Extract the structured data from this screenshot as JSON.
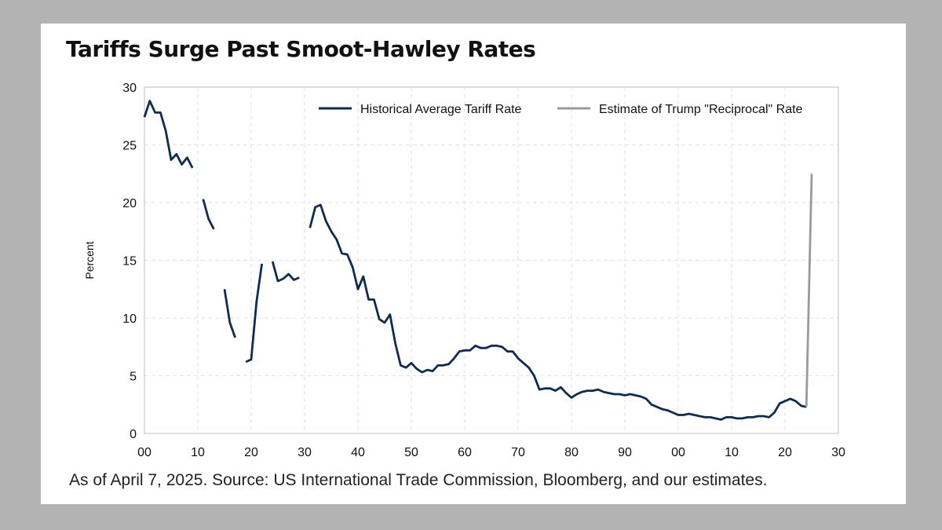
{
  "page": {
    "background": "#b3b3b3"
  },
  "chart_data": {
    "type": "line",
    "title": "Tariffs Surge Past Smoot-Hawley Rates",
    "ylabel": "Percent",
    "xlabel": "",
    "footnote": "As of April 7, 2025. Source: US International Trade Commission, Bloomberg, and our estimates.",
    "xlim": [
      1900,
      2030
    ],
    "ylim": [
      0,
      30
    ],
    "xticks": [
      {
        "value": 1900,
        "label": "00"
      },
      {
        "value": 1910,
        "label": "10"
      },
      {
        "value": 1920,
        "label": "20"
      },
      {
        "value": 1930,
        "label": "30"
      },
      {
        "value": 1940,
        "label": "40"
      },
      {
        "value": 1950,
        "label": "50"
      },
      {
        "value": 1960,
        "label": "60"
      },
      {
        "value": 1970,
        "label": "70"
      },
      {
        "value": 1980,
        "label": "80"
      },
      {
        "value": 1990,
        "label": "90"
      },
      {
        "value": 2000,
        "label": "00"
      },
      {
        "value": 2010,
        "label": "10"
      },
      {
        "value": 2020,
        "label": "20"
      },
      {
        "value": 2030,
        "label": "30"
      }
    ],
    "yticks": [
      0,
      5,
      10,
      15,
      20,
      25,
      30
    ],
    "grid": true,
    "legend_position": "top-right",
    "series": [
      {
        "name": "Historical Average Tariff Rate",
        "color": "#0d2c54",
        "segments": [
          [
            [
              1900,
              27.4
            ],
            [
              1901,
              28.8
            ],
            [
              1902,
              27.8
            ],
            [
              1903,
              27.8
            ],
            [
              1904,
              26.2
            ],
            [
              1905,
              23.7
            ],
            [
              1906,
              24.2
            ],
            [
              1907,
              23.3
            ],
            [
              1908,
              23.9
            ],
            [
              1909,
              23.0
            ]
          ],
          [
            [
              1911,
              20.3
            ],
            [
              1912,
              18.6
            ],
            [
              1913,
              17.7
            ]
          ],
          [
            [
              1915,
              12.5
            ],
            [
              1916,
              9.6
            ],
            [
              1917,
              8.3
            ]
          ],
          [
            [
              1919,
              6.2
            ],
            [
              1920,
              6.4
            ],
            [
              1921,
              11.4
            ],
            [
              1922,
              14.7
            ]
          ],
          [
            [
              1924,
              14.9
            ],
            [
              1925,
              13.2
            ],
            [
              1926,
              13.4
            ],
            [
              1927,
              13.8
            ],
            [
              1928,
              13.3
            ],
            [
              1929,
              13.5
            ]
          ],
          [
            [
              1931,
              17.8
            ],
            [
              1932,
              19.6
            ],
            [
              1933,
              19.8
            ],
            [
              1934,
              18.4
            ],
            [
              1935,
              17.5
            ],
            [
              1936,
              16.8
            ],
            [
              1937,
              15.6
            ],
            [
              1938,
              15.5
            ],
            [
              1939,
              14.4
            ],
            [
              1940,
              12.5
            ],
            [
              1941,
              13.6
            ],
            [
              1942,
              11.6
            ],
            [
              1943,
              11.6
            ],
            [
              1944,
              9.9
            ],
            [
              1945,
              9.6
            ],
            [
              1946,
              10.3
            ],
            [
              1947,
              7.8
            ],
            [
              1948,
              5.9
            ],
            [
              1949,
              5.7
            ],
            [
              1950,
              6.1
            ],
            [
              1951,
              5.6
            ],
            [
              1952,
              5.3
            ],
            [
              1953,
              5.5
            ],
            [
              1954,
              5.4
            ],
            [
              1955,
              5.9
            ],
            [
              1956,
              5.9
            ],
            [
              1957,
              6.0
            ],
            [
              1958,
              6.5
            ],
            [
              1959,
              7.1
            ],
            [
              1960,
              7.2
            ],
            [
              1961,
              7.2
            ],
            [
              1962,
              7.6
            ],
            [
              1963,
              7.4
            ],
            [
              1964,
              7.4
            ],
            [
              1965,
              7.6
            ],
            [
              1966,
              7.6
            ],
            [
              1967,
              7.5
            ],
            [
              1968,
              7.1
            ],
            [
              1969,
              7.1
            ],
            [
              1970,
              6.5
            ],
            [
              1971,
              6.1
            ],
            [
              1972,
              5.7
            ],
            [
              1973,
              5.0
            ],
            [
              1974,
              3.8
            ],
            [
              1975,
              3.9
            ],
            [
              1976,
              3.9
            ],
            [
              1977,
              3.7
            ],
            [
              1978,
              4.0
            ],
            [
              1979,
              3.5
            ],
            [
              1980,
              3.1
            ],
            [
              1981,
              3.4
            ],
            [
              1982,
              3.6
            ],
            [
              1983,
              3.7
            ],
            [
              1984,
              3.7
            ],
            [
              1985,
              3.8
            ],
            [
              1986,
              3.6
            ],
            [
              1987,
              3.5
            ],
            [
              1988,
              3.4
            ],
            [
              1989,
              3.4
            ],
            [
              1990,
              3.3
            ],
            [
              1991,
              3.4
            ],
            [
              1992,
              3.3
            ],
            [
              1993,
              3.2
            ],
            [
              1994,
              3.0
            ],
            [
              1995,
              2.5
            ],
            [
              1996,
              2.3
            ],
            [
              1997,
              2.1
            ],
            [
              1998,
              2.0
            ],
            [
              1999,
              1.8
            ],
            [
              2000,
              1.6
            ],
            [
              2001,
              1.6
            ],
            [
              2002,
              1.7
            ],
            [
              2003,
              1.6
            ],
            [
              2004,
              1.5
            ],
            [
              2005,
              1.4
            ],
            [
              2006,
              1.4
            ],
            [
              2007,
              1.3
            ],
            [
              2008,
              1.2
            ],
            [
              2009,
              1.4
            ],
            [
              2010,
              1.4
            ],
            [
              2011,
              1.3
            ],
            [
              2012,
              1.3
            ],
            [
              2013,
              1.4
            ],
            [
              2014,
              1.4
            ],
            [
              2015,
              1.5
            ],
            [
              2016,
              1.5
            ],
            [
              2017,
              1.4
            ],
            [
              2018,
              1.8
            ],
            [
              2019,
              2.6
            ],
            [
              2020,
              2.8
            ],
            [
              2021,
              3.0
            ],
            [
              2022,
              2.8
            ],
            [
              2023,
              2.4
            ],
            [
              2024,
              2.3
            ]
          ]
        ]
      },
      {
        "name": "Estimate of Trump \"Reciprocal\" Rate",
        "color": "#9a9a9a",
        "segments": [
          [
            [
              2024,
              2.3
            ],
            [
              2025,
              22.5
            ]
          ]
        ]
      }
    ]
  }
}
